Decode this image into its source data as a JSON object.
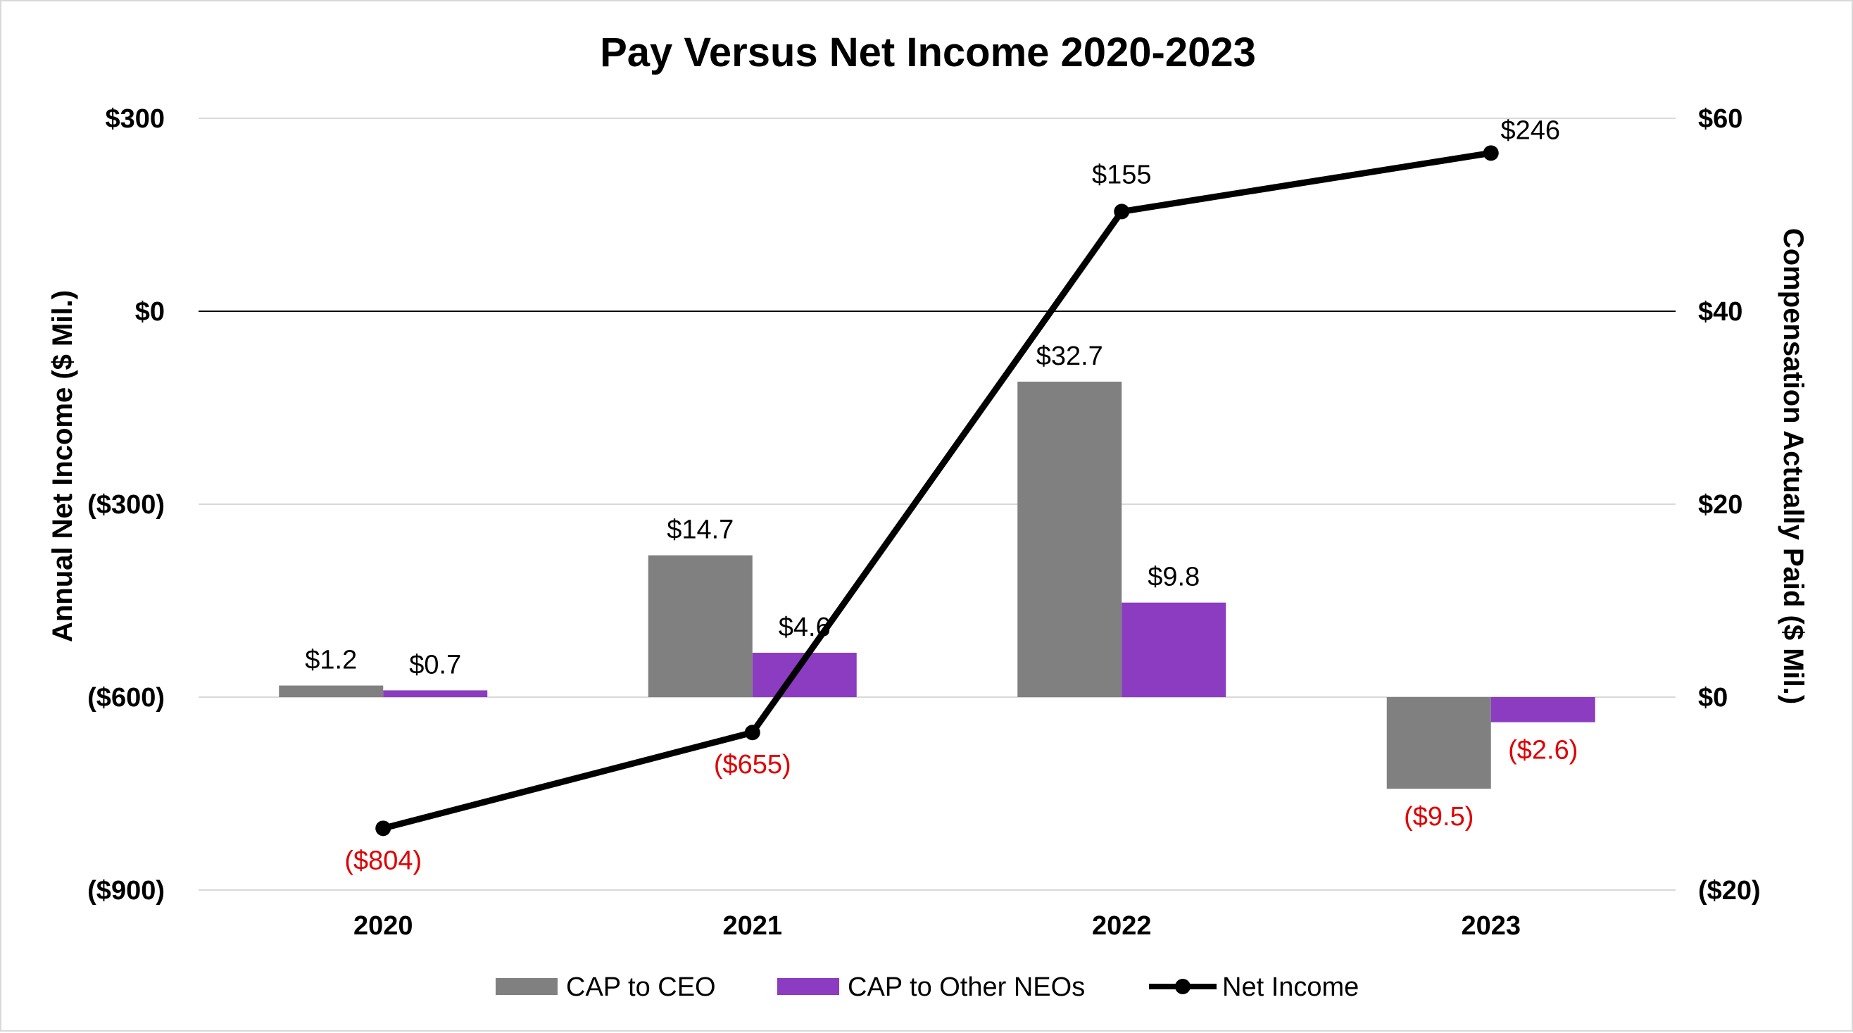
{
  "chart_data": {
    "type": "bar+line",
    "title": "Pay Versus Net Income 2020-2023",
    "categories": [
      "2020",
      "2021",
      "2022",
      "2023"
    ],
    "left_axis": {
      "label": "Annual Net Income ($ Mil.)",
      "ticks": [
        300,
        0,
        -300,
        -600,
        -900
      ],
      "tick_labels": [
        "$300",
        "$0",
        "($300)",
        "($600)",
        "($900)"
      ],
      "ylim": [
        -900,
        300
      ]
    },
    "right_axis": {
      "label": "Compensation Actually Paid ($ Mil.)",
      "ticks": [
        60,
        40,
        20,
        0,
        -20
      ],
      "tick_labels": [
        "$60",
        "$40",
        "$20",
        "$0",
        "($20)"
      ],
      "ylim": [
        -20,
        60
      ]
    },
    "series": [
      {
        "name": "CAP to CEO",
        "type": "bar",
        "axis": "right",
        "color": "#808080",
        "values": [
          1.2,
          14.7,
          32.7,
          -9.5
        ],
        "labels": [
          "$1.2",
          "$14.7",
          "$32.7",
          "($9.5)"
        ]
      },
      {
        "name": "CAP to Other NEOs",
        "type": "bar",
        "axis": "right",
        "color": "#8B3CC0",
        "values": [
          0.7,
          4.6,
          9.8,
          -2.6
        ],
        "labels": [
          "$0.7",
          "$4.6",
          "$9.8",
          "($2.6)"
        ]
      },
      {
        "name": "Net Income",
        "type": "line",
        "axis": "left",
        "color": "#000000",
        "values": [
          -804,
          -655,
          155,
          246
        ],
        "labels": [
          "($804)",
          "($655)",
          "$155",
          "$246"
        ]
      }
    ],
    "negative_label_color": "#e00000",
    "gridlines": true,
    "legend_position": "bottom"
  }
}
